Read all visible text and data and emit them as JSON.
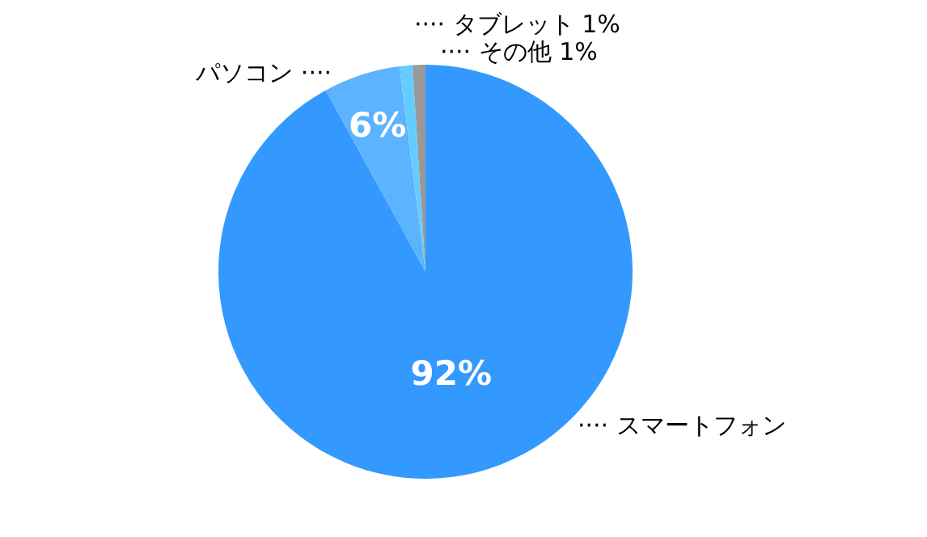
{
  "chart_data": {
    "type": "pie",
    "categories": [
      "···· スマートフォン",
      "パソコン ····",
      "···· タブレット",
      "···· その他"
    ],
    "values": [
      92,
      6,
      1,
      1
    ],
    "colors": [
      "#3399ff",
      "#5cb3ff",
      "#66ccff",
      "#999999"
    ],
    "value_labels": [
      "92%",
      "6%",
      "1%",
      "1%"
    ]
  }
}
